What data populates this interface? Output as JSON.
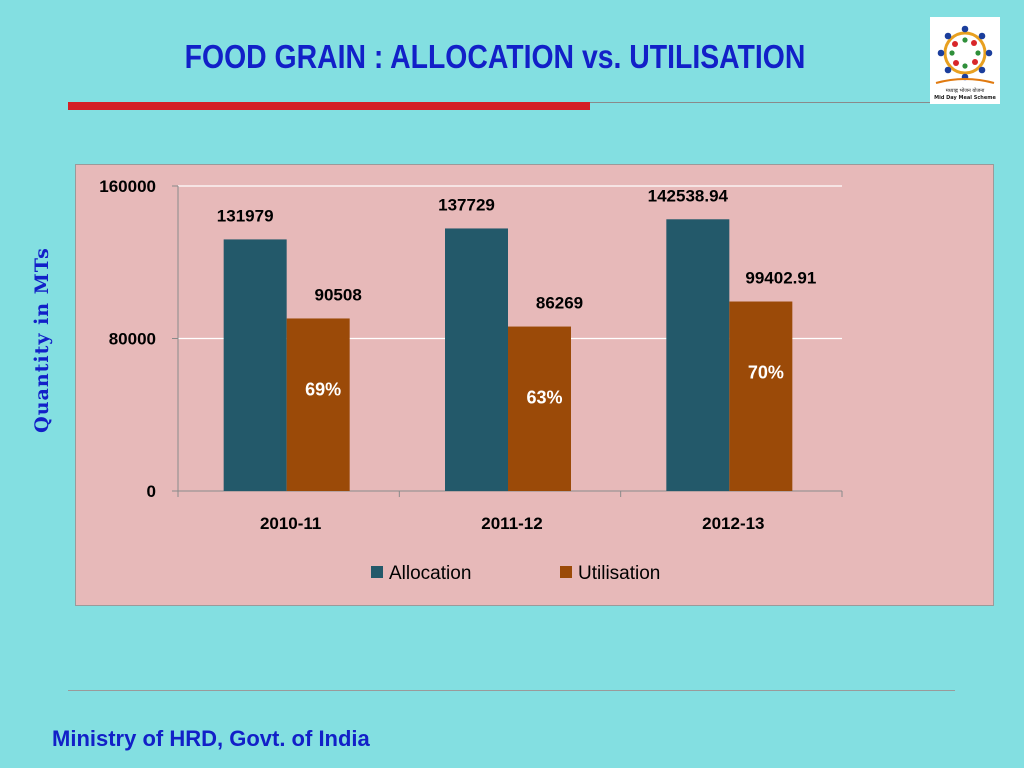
{
  "header": {
    "title": "FOOD GRAIN : ALLOCATION vs. UTILISATION"
  },
  "logo": {
    "text_line1": "मध्याह्न भोजन योजना",
    "text_line2": "Mid Day Meal Scheme"
  },
  "footer": {
    "text": "Ministry of HRD, Govt. of India"
  },
  "colors": {
    "allocation": "#23596a",
    "utilisation": "#9b4a08",
    "percent_text": "#ffffff"
  },
  "chart_data": {
    "type": "bar",
    "title": "",
    "xlabel": "",
    "ylabel": "Quantity in MTs",
    "categories": [
      "2010-11",
      "2011-12",
      "2012-13"
    ],
    "series": [
      {
        "name": "Allocation",
        "values": [
          131979,
          137729,
          142538.94
        ],
        "labels": [
          "131979",
          "137729",
          "142538.94"
        ]
      },
      {
        "name": "Utilisation",
        "values": [
          90508,
          86269,
          99402.91
        ],
        "labels": [
          "90508",
          "86269",
          "99402.91"
        ]
      }
    ],
    "percent_labels": [
      "69%",
      "63%",
      "70%"
    ],
    "ylim": [
      0,
      160000
    ],
    "yticks": [
      0,
      80000,
      160000
    ],
    "grid": true,
    "legend": "bottom"
  }
}
